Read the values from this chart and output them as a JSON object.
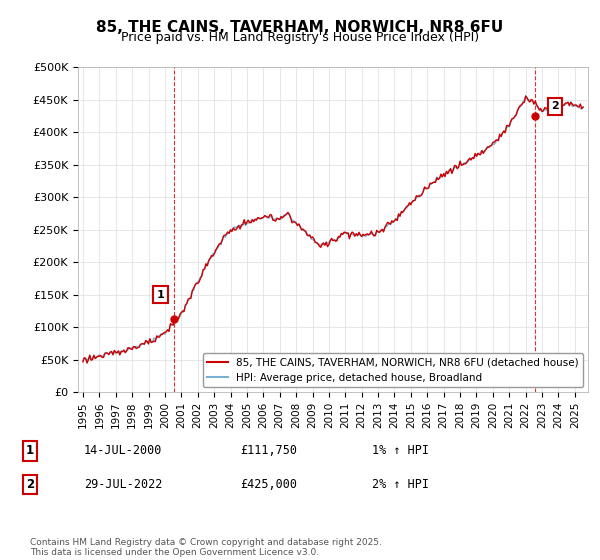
{
  "title": "85, THE CAINS, TAVERHAM, NORWICH, NR8 6FU",
  "subtitle": "Price paid vs. HM Land Registry's House Price Index (HPI)",
  "title_fontsize": 11,
  "subtitle_fontsize": 9,
  "ylim": [
    0,
    500000
  ],
  "yticks": [
    0,
    50000,
    100000,
    150000,
    200000,
    250000,
    300000,
    350000,
    400000,
    450000,
    500000
  ],
  "ytick_labels": [
    "£0",
    "£50K",
    "£100K",
    "£150K",
    "£200K",
    "£250K",
    "£300K",
    "£350K",
    "£400K",
    "£450K",
    "£500K"
  ],
  "hpi_color": "#7ab0d4",
  "price_color": "#cc0000",
  "marker1_date": 2000.54,
  "marker1_price": 111750,
  "marker1_label": "1",
  "marker2_date": 2022.57,
  "marker2_price": 425000,
  "marker2_label": "2",
  "legend_line1": "85, THE CAINS, TAVERHAM, NORWICH, NR8 6FU (detached house)",
  "legend_line2": "HPI: Average price, detached house, Broadland",
  "note1_num": "1",
  "note1_date": "14-JUL-2000",
  "note1_price": "£111,750",
  "note1_hpi": "1% ↑ HPI",
  "note2_num": "2",
  "note2_date": "29-JUL-2022",
  "note2_price": "£425,000",
  "note2_hpi": "2% ↑ HPI",
  "footer": "Contains HM Land Registry data © Crown copyright and database right 2025.\nThis data is licensed under the Open Government Licence v3.0.",
  "background_color": "#ffffff",
  "grid_color": "#dddddd"
}
